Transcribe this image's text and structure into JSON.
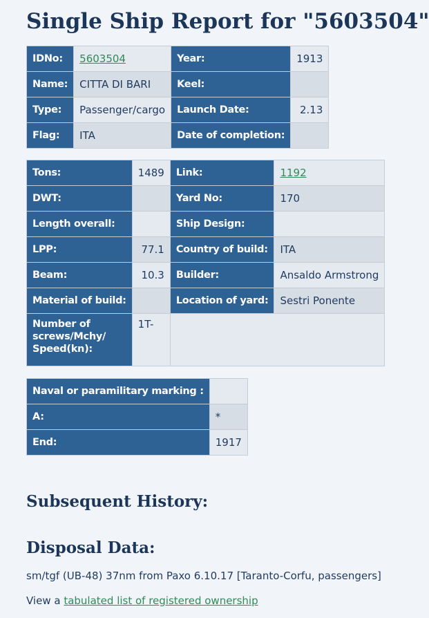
{
  "title": "Single Ship Report for \"5603504\"",
  "table1": {
    "idno_label": "IDNo:",
    "idno_value": "5603504",
    "year_label": "Year:",
    "year_value": "1913",
    "name_label": "Name:",
    "name_value": "CITTA DI BARI",
    "keel_label": "Keel:",
    "keel_value": "",
    "type_label": "Type:",
    "type_value": "Passenger/cargo",
    "launch_label": "Launch Date:",
    "launch_value": "2.13",
    "flag_label": "Flag:",
    "flag_value": "ITA",
    "completion_label": "Date of completion:",
    "completion_value": ""
  },
  "table2": {
    "tons_label": "Tons:",
    "tons_value": "1489",
    "link_label": "Link:",
    "link_value": "1192",
    "dwt_label": "DWT:",
    "dwt_value": "",
    "yard_label": "Yard No:",
    "yard_value": "170",
    "length_label": "Length overall:",
    "length_value": "",
    "design_label": "Ship Design:",
    "design_value": "",
    "lpp_label": "LPP:",
    "lpp_value": "77.1",
    "country_label": "Country of build:",
    "country_value": "ITA",
    "beam_label": "Beam:",
    "beam_value": "10.3",
    "builder_label": "Builder:",
    "builder_value": "Ansaldo Armstrong",
    "material_label": "Material of build:",
    "material_value": "",
    "location_label": "Location of yard:",
    "location_value": "Sestri Ponente",
    "screws_label_1": "Number of",
    "screws_label_2": "screws/Mchy/",
    "screws_label_3": "Speed(kn):",
    "screws_value": "1T-"
  },
  "table3": {
    "naval_label": "Naval or paramilitary marking :",
    "naval_value": "",
    "a_label": "A:",
    "a_value": "*",
    "end_label": "End:",
    "end_value": "1917"
  },
  "subsequent_heading": "Subsequent History:",
  "disposal_heading": "Disposal Data:",
  "disposal_text": "sm/tgf (UB-48) 37nm from Paxo 6.10.17 [Taranto-Corfu, passengers]",
  "view_prefix": "View a ",
  "view_link": "tabulated list of registered ownership"
}
